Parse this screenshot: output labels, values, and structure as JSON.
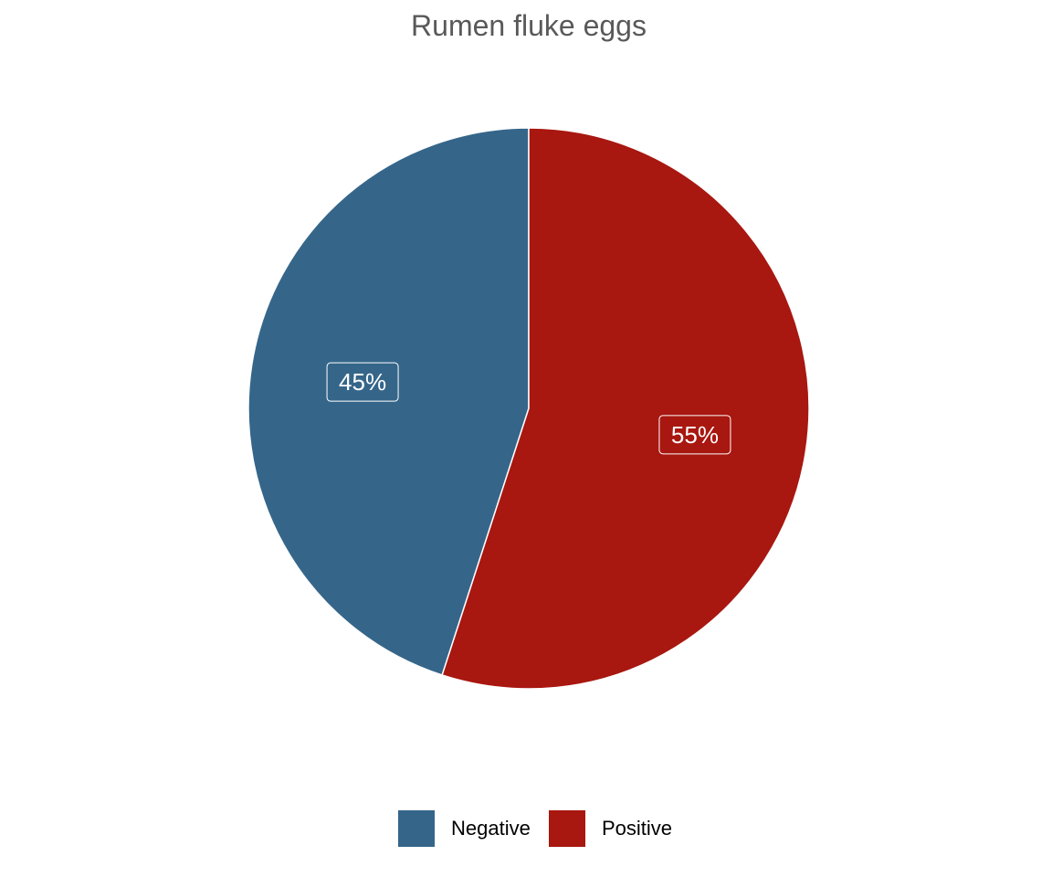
{
  "chart_data": {
    "type": "pie",
    "title": "Rumen fluke eggs",
    "categories": [
      "Negative",
      "Positive"
    ],
    "values": [
      45,
      55
    ],
    "labels": [
      "45%",
      "55%"
    ],
    "colors": [
      "#35668A",
      "#A81710"
    ],
    "legend": {
      "placement": "bottom",
      "entries": [
        "Negative",
        "Positive"
      ]
    }
  }
}
